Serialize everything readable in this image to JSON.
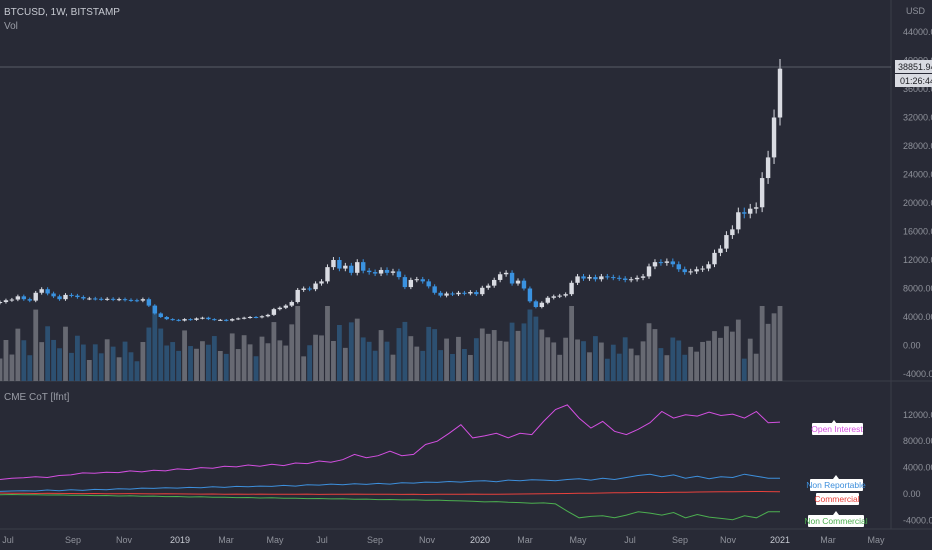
{
  "header": {
    "symbol_line": "BTCUSD, 1W, BITSTAMP",
    "volume_label": "Vol",
    "currency_label": "USD"
  },
  "indicator": {
    "name": "CME CoT [lfnt]"
  },
  "price_scale": {
    "ticks": [
      "44000.00",
      "40000.00",
      "36000.00",
      "32000.00",
      "28000.00",
      "24000.00",
      "20000.00",
      "16000.00",
      "12000.00",
      "8000.00",
      "4000.00",
      "0.00",
      "-4000.00"
    ],
    "last_price": "38851.94",
    "countdown": "01:26:44"
  },
  "cot_scale": {
    "ticks": [
      "12000.00",
      "8000.00",
      "4000.00",
      "0.00",
      "-4000.00"
    ]
  },
  "time_axis": {
    "labels": [
      "Jul",
      "Sep",
      "Nov",
      "2019",
      "Mar",
      "May",
      "Jul",
      "Sep",
      "Nov",
      "2020",
      "Mar",
      "May",
      "Jul",
      "Sep",
      "Nov",
      "2021",
      "Mar",
      "May"
    ]
  },
  "colors": {
    "background": "#282a36",
    "up_candle": "#d9dbe2",
    "down_candle": "#3a92e0",
    "open_interest": "#d34fe0",
    "non_reportable": "#3d8fdc",
    "commercial": "#e8413c",
    "non_commercial": "#4caf50"
  },
  "legend_labels": {
    "open_interest": "Open Interest",
    "non_reportable": "Non Reportable",
    "commercial": "Commercial",
    "non_commercial": "Non Commercial"
  },
  "chart_data": [
    {
      "type": "candlestick",
      "title": "BTCUSD, 1W, BITSTAMP",
      "ylabel": "USD",
      "ylim": [
        -4000,
        46000
      ],
      "x_start": "2018-06",
      "close": [
        6100,
        6350,
        6450,
        6900,
        6500,
        6300,
        7400,
        7900,
        7300,
        6900,
        6500,
        7100,
        7000,
        6800,
        6600,
        6600,
        6550,
        6500,
        6550,
        6450,
        6500,
        6400,
        6350,
        6300,
        6500,
        5600,
        4500,
        4000,
        3700,
        3600,
        3500,
        3700,
        3600,
        3800,
        3900,
        3700,
        3600,
        3600,
        3500,
        3700,
        3800,
        3900,
        4000,
        3950,
        4100,
        4300,
        5100,
        5300,
        5600,
        6100,
        7800,
        8000,
        7900,
        8700,
        9000,
        11000,
        12000,
        10800,
        11200,
        10200,
        11700,
        10500,
        10300,
        10100,
        10600,
        10200,
        10400,
        9600,
        8200,
        9200,
        9300,
        9000,
        8300,
        7400,
        7000,
        7300,
        7200,
        7400,
        7300,
        7500,
        7200,
        8100,
        8400,
        9200,
        10000,
        10200,
        8700,
        9100,
        8000,
        6200,
        5400,
        6000,
        6700,
        6900,
        7000,
        7200,
        8800,
        9700,
        9400,
        9600,
        9300,
        9700,
        9600,
        9500,
        9400,
        9200,
        9300,
        9500,
        9700,
        11100,
        11700,
        11600,
        11800,
        11400,
        10700,
        10300,
        10400,
        10700,
        10800,
        11400,
        13000,
        13600,
        15500,
        16300,
        18700,
        18500,
        19200,
        19400,
        23500,
        26400,
        32000,
        38851
      ]
    },
    {
      "type": "line",
      "title": "CME CoT [lfnt]",
      "ylim": [
        -5000,
        15000
      ],
      "series": [
        {
          "name": "Open Interest",
          "values": [
            2200,
            2400,
            2450,
            2600,
            2500,
            2800,
            2900,
            3200,
            3150,
            3300,
            3250,
            3500,
            3350,
            3600,
            3500,
            3800,
            3700,
            4000,
            3900,
            4200,
            4100,
            4400,
            4200,
            4500,
            4300,
            4700,
            4600,
            5000,
            4800,
            5200,
            6000,
            5500,
            5800,
            6500,
            5800,
            6000,
            7500,
            8000,
            9200,
            10500,
            8500,
            8800,
            9200,
            8500,
            9200,
            9000,
            11000,
            12800,
            13500,
            11500,
            10000,
            11000,
            9500,
            9000,
            9800,
            10800,
            12500,
            11500,
            12000,
            11800,
            12400,
            11900,
            12100,
            11500,
            12500,
            10800,
            10900
          ]
        },
        {
          "name": "Non Reportable",
          "values": [
            400,
            450,
            500,
            450,
            600,
            500,
            650,
            550,
            700,
            650,
            800,
            750,
            900,
            850,
            950,
            900,
            1000,
            950,
            1100,
            1000,
            1150,
            1100,
            1200,
            1150,
            1300,
            1200,
            1400,
            1350,
            1500,
            1400,
            1550,
            1450,
            1600,
            1500,
            1700,
            1650,
            1800,
            1750,
            1900,
            1800,
            1950,
            2000,
            1850,
            2100,
            2000,
            2150,
            2100,
            2000,
            2200,
            2300,
            2100,
            2400,
            2200,
            2500,
            2800,
            3000,
            2600,
            2900,
            2400,
            2700,
            2300,
            2600,
            2500,
            3000,
            2700,
            2400,
            2400
          ]
        },
        {
          "name": "Commercial",
          "values": [
            150,
            120,
            100,
            80,
            100,
            90,
            70,
            60,
            80,
            50,
            40,
            60,
            30,
            20,
            40,
            10,
            0,
            -20,
            0,
            -30,
            -10,
            -40,
            -20,
            -50,
            -30,
            -40,
            -20,
            -60,
            -40,
            -30,
            -20,
            -50,
            -40,
            -30,
            -60,
            -40,
            -70,
            -50,
            -40,
            -30,
            -20,
            -40,
            -30,
            -10,
            0,
            20,
            40,
            60,
            80,
            100,
            120,
            150,
            180,
            200,
            220,
            250,
            230,
            260,
            280,
            300,
            320,
            330,
            350,
            370,
            380,
            360,
            350
          ]
        },
        {
          "name": "Non Commercial",
          "values": [
            -100,
            -80,
            -120,
            -100,
            -150,
            -130,
            -200,
            -180,
            -250,
            -220,
            -300,
            -280,
            -350,
            -320,
            -400,
            -380,
            -450,
            -430,
            -500,
            -480,
            -550,
            -530,
            -600,
            -580,
            -650,
            -630,
            -700,
            -680,
            -750,
            -730,
            -800,
            -780,
            -850,
            -830,
            -900,
            -880,
            -950,
            -930,
            -1000,
            -1050,
            -1100,
            -1200,
            -1150,
            -1250,
            -1300,
            -1400,
            -1350,
            -1500,
            -2600,
            -3600,
            -3400,
            -3300,
            -3600,
            -3200,
            -2700,
            -2900,
            -3200,
            -2800,
            -3600,
            -3100,
            -3500,
            -3700,
            -3900,
            -3300,
            -3600,
            -2700,
            -2700
          ]
        }
      ]
    }
  ]
}
